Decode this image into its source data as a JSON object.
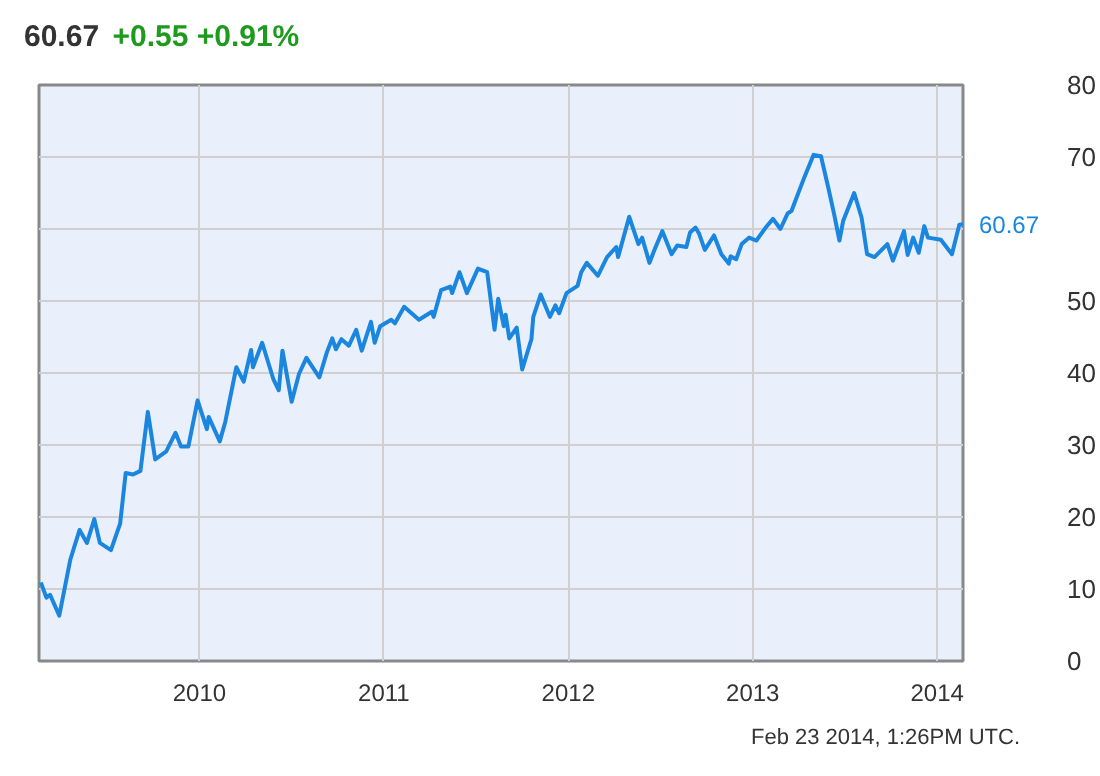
{
  "chart_data": {
    "type": "line",
    "title": "60.67",
    "subtitle": "+0.55 +0.91%",
    "x": [
      2009.14,
      2009.17,
      2009.19,
      2009.24,
      2009.3,
      2009.35,
      2009.39,
      2009.43,
      2009.46,
      2009.52,
      2009.57,
      2009.6,
      2009.64,
      2009.68,
      2009.72,
      2009.76,
      2009.82,
      2009.87,
      2009.9,
      2009.94,
      2009.99,
      2010.04,
      2010.05,
      2010.11,
      2010.14,
      2010.2,
      2010.24,
      2010.28,
      2010.29,
      2010.34,
      2010.4,
      2010.43,
      2010.45,
      2010.5,
      2010.54,
      2010.58,
      2010.65,
      2010.69,
      2010.72,
      2010.74,
      2010.77,
      2010.81,
      2010.85,
      2010.88,
      2010.93,
      2010.95,
      2010.98,
      2011.04,
      2011.06,
      2011.11,
      2011.19,
      2011.26,
      2011.27,
      2011.31,
      2011.36,
      2011.37,
      2011.41,
      2011.45,
      2011.51,
      2011.56,
      2011.6,
      2011.62,
      2011.65,
      2011.66,
      2011.68,
      2011.72,
      2011.75,
      2011.8,
      2011.81,
      2011.85,
      2011.9,
      2011.93,
      2011.95,
      2011.99,
      2012.05,
      2012.07,
      2012.1,
      2012.16,
      2012.21,
      2012.26,
      2012.27,
      2012.33,
      2012.38,
      2012.4,
      2012.44,
      2012.47,
      2012.51,
      2012.56,
      2012.59,
      2012.64,
      2012.66,
      2012.69,
      2012.71,
      2012.74,
      2012.79,
      2012.83,
      2012.87,
      2012.88,
      2012.91,
      2012.94,
      2012.98,
      2013.02,
      2013.07,
      2013.11,
      2013.15,
      2013.19,
      2013.21,
      2013.28,
      2013.33,
      2013.37,
      2013.41,
      2013.44,
      2013.47,
      2013.49,
      2013.55,
      2013.59,
      2013.62,
      2013.66,
      2013.73,
      2013.76,
      2013.82,
      2013.84,
      2013.87,
      2013.9,
      2013.93,
      2013.95,
      2014.02,
      2014.08,
      2014.12,
      2014.14
    ],
    "series": [
      {
        "color": "#1a86e0",
        "values": [
          10.9,
          8.8,
          9.2,
          6.3,
          14.1,
          18.2,
          16.4,
          19.7,
          16.4,
          15.4,
          19.1,
          26.1,
          25.9,
          26.4,
          34.6,
          28.0,
          29.1,
          31.7,
          29.8,
          29.8,
          36.2,
          32.2,
          33.9,
          30.5,
          33.2,
          40.8,
          38.8,
          43.2,
          40.8,
          44.2,
          39.2,
          37.6,
          43.1,
          36.0,
          39.9,
          42.1,
          39.4,
          42.8,
          44.8,
          43.3,
          44.7,
          43.8,
          46.0,
          43.1,
          47.1,
          44.2,
          46.5,
          47.4,
          46.9,
          49.2,
          47.4,
          48.5,
          47.8,
          51.5,
          52.0,
          51.1,
          54.0,
          51.1,
          54.5,
          54.0,
          46.0,
          50.3,
          46.5,
          48.1,
          44.8,
          46.3,
          40.5,
          44.7,
          47.8,
          50.9,
          47.8,
          49.4,
          48.3,
          51.1,
          52.1,
          54.0,
          55.3,
          53.5,
          56.1,
          57.5,
          56.1,
          61.7,
          57.9,
          58.8,
          55.3,
          57.3,
          59.7,
          56.5,
          57.7,
          57.5,
          59.5,
          60.2,
          59.3,
          57.1,
          59.1,
          56.5,
          55.2,
          56.2,
          55.8,
          57.9,
          58.8,
          58.4,
          60.2,
          61.4,
          60.0,
          62.2,
          62.5,
          67.2,
          70.3,
          70.1,
          65.7,
          62.2,
          58.4,
          61.1,
          65.0,
          61.6,
          56.5,
          56.1,
          57.9,
          55.6,
          59.7,
          56.4,
          58.8,
          56.7,
          60.4,
          58.8,
          58.5,
          56.5,
          60.6,
          60.67
        ]
      }
    ],
    "xlim": [
      2009.13,
      2014.14
    ],
    "ylim": [
      0,
      80
    ],
    "xticks": [
      2010,
      2011,
      2012,
      2013,
      2014
    ],
    "yticks": [
      0,
      10,
      20,
      30,
      40,
      50,
      {
        "value": 60,
        "label": null
      },
      70,
      80
    ],
    "grid": true,
    "line_style": "solid",
    "annotations": [
      {
        "text": "60.67",
        "x": 2014.14,
        "y": 60.67
      },
      "Feb 23 2014, 1:26PM UTC."
    ]
  }
}
